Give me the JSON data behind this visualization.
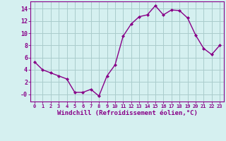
{
  "x": [
    0,
    1,
    2,
    3,
    4,
    5,
    6,
    7,
    8,
    9,
    10,
    11,
    12,
    13,
    14,
    15,
    16,
    17,
    18,
    19,
    20,
    21,
    22,
    23
  ],
  "y": [
    5.3,
    4.0,
    3.5,
    3.0,
    2.5,
    0.3,
    0.3,
    0.8,
    -0.3,
    3.0,
    4.8,
    9.5,
    11.5,
    12.7,
    13.0,
    14.5,
    13.0,
    13.8,
    13.7,
    12.5,
    9.7,
    7.5,
    6.5,
    8.0
  ],
  "line_color": "#880088",
  "marker_color": "#880088",
  "bg_color": "#d5f0f0",
  "grid_color": "#aacccc",
  "axis_label_color": "#880088",
  "xlabel": "Windchill (Refroidissement éolien,°C)",
  "yticks": [
    0,
    2,
    4,
    6,
    8,
    10,
    12,
    14
  ],
  "ylim": [
    -1.2,
    15.2
  ],
  "xlim": [
    -0.5,
    23.5
  ],
  "xtick_labels": [
    "0",
    "1",
    "2",
    "3",
    "4",
    "5",
    "6",
    "7",
    "8",
    "9",
    "10",
    "11",
    "12",
    "13",
    "14",
    "15",
    "16",
    "17",
    "18",
    "19",
    "20",
    "21",
    "22",
    "23"
  ],
  "border_color": "#880088"
}
